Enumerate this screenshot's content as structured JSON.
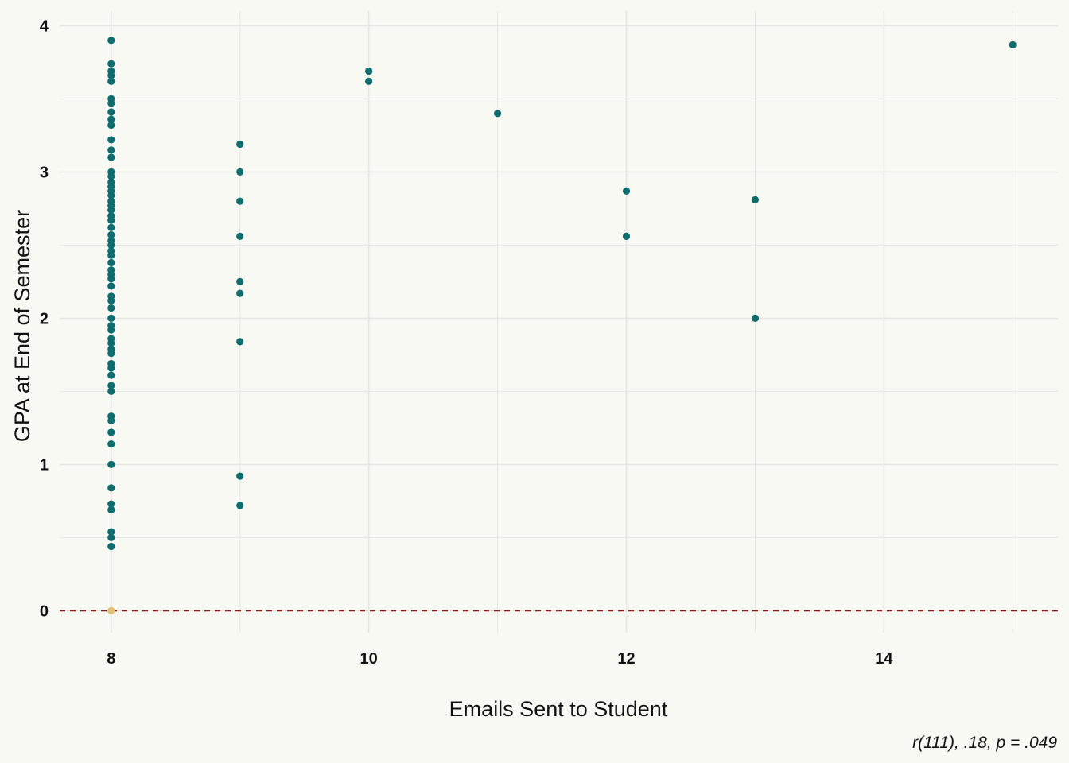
{
  "chart_data": {
    "type": "scatter",
    "xlabel": "Emails Sent to Student",
    "ylabel": "GPA at End of Semester",
    "caption": "r(111), .18, p = .049",
    "xlim": [
      7.6,
      15.35
    ],
    "ylim": [
      -0.15,
      4.1
    ],
    "x_ticks": [
      8,
      10,
      12,
      14
    ],
    "y_ticks": [
      0,
      1,
      2,
      3,
      4
    ],
    "x_minor": [
      9,
      11,
      13,
      15
    ],
    "y_minor": [
      0.5,
      1.5,
      2.5,
      3.5
    ],
    "reference_line": {
      "y": 0,
      "style": "dashed",
      "color": "#8b1a1a"
    },
    "grid": true,
    "colors": {
      "point": "#0b6e6e",
      "zero_point": "#e2c174",
      "grid": "#e6e6e3",
      "background": "#f9f9f4"
    },
    "series": [
      {
        "points": [
          [
            8,
            3.9
          ],
          [
            8,
            3.74
          ],
          [
            8,
            3.69
          ],
          [
            8,
            3.66
          ],
          [
            8,
            3.62
          ],
          [
            8,
            3.5
          ],
          [
            8,
            3.47
          ],
          [
            8,
            3.41
          ],
          [
            8,
            3.36
          ],
          [
            8,
            3.32
          ],
          [
            8,
            3.22
          ],
          [
            8,
            3.15
          ],
          [
            8,
            3.1
          ],
          [
            8,
            3.0
          ],
          [
            8,
            2.97
          ],
          [
            8,
            2.93
          ],
          [
            8,
            2.9
          ],
          [
            8,
            2.87
          ],
          [
            8,
            2.84
          ],
          [
            8,
            2.8
          ],
          [
            8,
            2.77
          ],
          [
            8,
            2.74
          ],
          [
            8,
            2.7
          ],
          [
            8,
            2.67
          ],
          [
            8,
            2.62
          ],
          [
            8,
            2.57
          ],
          [
            8,
            2.53
          ],
          [
            8,
            2.5
          ],
          [
            8,
            2.46
          ],
          [
            8,
            2.43
          ],
          [
            8,
            2.38
          ],
          [
            8,
            2.33
          ],
          [
            8,
            2.3
          ],
          [
            8,
            2.27
          ],
          [
            8,
            2.22
          ],
          [
            8,
            2.15
          ],
          [
            8,
            2.12
          ],
          [
            8,
            2.07
          ],
          [
            8,
            2.0
          ],
          [
            8,
            1.95
          ],
          [
            8,
            1.92
          ],
          [
            8,
            1.86
          ],
          [
            8,
            1.83
          ],
          [
            8,
            1.79
          ],
          [
            8,
            1.76
          ],
          [
            8,
            1.69
          ],
          [
            8,
            1.66
          ],
          [
            8,
            1.61
          ],
          [
            8,
            1.54
          ],
          [
            8,
            1.5
          ],
          [
            8,
            1.33
          ],
          [
            8,
            1.3
          ],
          [
            8,
            1.22
          ],
          [
            8,
            1.14
          ],
          [
            8,
            1.0
          ],
          [
            8,
            0.84
          ],
          [
            8,
            0.73
          ],
          [
            8,
            0.69
          ],
          [
            8,
            0.54
          ],
          [
            8,
            0.5
          ],
          [
            8,
            0.44
          ],
          [
            9,
            3.19
          ],
          [
            9,
            3.0
          ],
          [
            9,
            2.8
          ],
          [
            9,
            2.56
          ],
          [
            9,
            2.25
          ],
          [
            9,
            2.17
          ],
          [
            9,
            1.84
          ],
          [
            9,
            0.92
          ],
          [
            9,
            0.72
          ],
          [
            10,
            3.69
          ],
          [
            10,
            3.62
          ],
          [
            11,
            3.4
          ],
          [
            12,
            2.87
          ],
          [
            12,
            2.56
          ],
          [
            13,
            2.81
          ],
          [
            13,
            2.0
          ],
          [
            15,
            3.87
          ]
        ]
      }
    ],
    "zero_points": [
      [
        8,
        0
      ]
    ]
  }
}
